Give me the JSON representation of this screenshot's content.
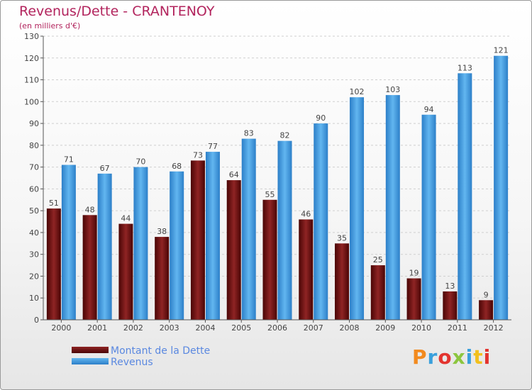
{
  "title": "Revenus/Dette - CRANTENOY",
  "subtitle": "(en milliers d'€)",
  "logo": "Proxiti",
  "chart_data": {
    "type": "bar",
    "categories": [
      "2000",
      "2001",
      "2002",
      "2003",
      "2004",
      "2005",
      "2006",
      "2007",
      "2008",
      "2009",
      "2010",
      "2011",
      "2012"
    ],
    "series": [
      {
        "name": "Montant de la Dette",
        "color": "#7a1818",
        "values": [
          51,
          48,
          44,
          38,
          73,
          64,
          55,
          46,
          35,
          25,
          19,
          13,
          9
        ]
      },
      {
        "name": "Revenus",
        "color": "#4da3e3",
        "values": [
          71,
          67,
          70,
          68,
          77,
          83,
          82,
          90,
          102,
          103,
          94,
          113,
          121
        ]
      }
    ],
    "ylim": [
      0,
      130
    ],
    "yticks": [
      0,
      10,
      20,
      30,
      40,
      50,
      60,
      70,
      80,
      90,
      100,
      110,
      120,
      130
    ],
    "grid": true,
    "legend": "bottom-left"
  }
}
